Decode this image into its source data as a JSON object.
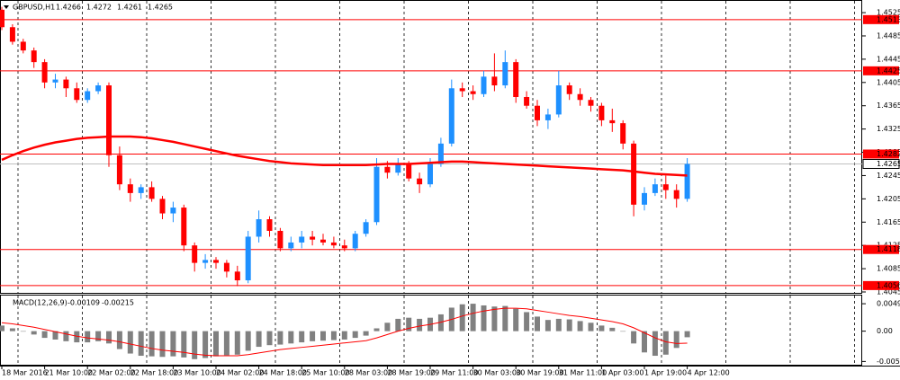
{
  "chart_data": {
    "type": "candlestick",
    "symbol": "GBPUSD,H1",
    "header_values": [
      1.4266,
      1.4272,
      1.4261,
      1.4265
    ],
    "up_color": "#1e90ff",
    "down_color": "#ff0000",
    "ma_color": "#ff0000",
    "grid": true,
    "ylim": [
      1.4045,
      1.4539
    ],
    "yticks": [
      1.4525,
      1.4485,
      1.4445,
      1.4405,
      1.4365,
      1.4325,
      1.4285,
      1.4245,
      1.4205,
      1.4165,
      1.4125,
      1.4085,
      1.4045
    ],
    "levels": [
      1.4513,
      1.4425,
      1.4282,
      1.4118,
      1.4056
    ],
    "last": 1.4265,
    "categories": [
      "18 Mar 2016",
      null,
      null,
      null,
      "21 Mar 10:00",
      null,
      null,
      null,
      "22 Mar 02:00",
      null,
      null,
      null,
      "22 Mar 18:00",
      null,
      null,
      null,
      "23 Mar 10:00",
      null,
      null,
      null,
      "24 Mar 02:00",
      null,
      null,
      null,
      "24 Mar 18:00",
      null,
      null,
      null,
      "25 Mar 10:00",
      null,
      null,
      null,
      "28 Mar 03:00",
      null,
      null,
      null,
      "28 Mar 19:00",
      null,
      null,
      null,
      "29 Mar 11:00",
      null,
      null,
      null,
      "30 Mar 03:00",
      null,
      null,
      null,
      "30 Mar 19:00",
      null,
      null,
      null,
      "31 Mar 11:00",
      null,
      null,
      null,
      "1 Apr 03:00",
      null,
      null,
      null,
      "1 Apr 19:00",
      null,
      null,
      null,
      "4 Apr 12:00"
    ],
    "open": [
      1.453,
      1.45,
      1.4475,
      1.446,
      1.444,
      1.4405,
      1.441,
      1.4395,
      1.4375,
      1.439,
      1.44,
      1.428,
      1.423,
      1.4215,
      1.4225,
      1.4205,
      1.418,
      1.419,
      1.4125,
      1.4095,
      1.41,
      1.4095,
      1.408,
      1.4065,
      1.414,
      1.417,
      1.415,
      1.412,
      1.413,
      1.414,
      1.4135,
      1.413,
      1.4125,
      1.412,
      1.4145,
      1.4165,
      1.426,
      1.425,
      1.4265,
      1.424,
      1.423,
      1.4265,
      1.43,
      1.4395,
      1.439,
      1.4385,
      1.4415,
      1.44,
      1.444,
      1.438,
      1.4365,
      1.434,
      1.435,
      1.44,
      1.4385,
      1.4375,
      1.4365,
      1.434,
      1.4335,
      1.43,
      1.4195,
      1.4215,
      1.423,
      1.422,
      1.4205
    ],
    "high": [
      1.4535,
      1.4505,
      1.448,
      1.4465,
      1.4445,
      1.442,
      1.4415,
      1.4405,
      1.4395,
      1.4405,
      1.4405,
      1.4295,
      1.424,
      1.423,
      1.4235,
      1.421,
      1.42,
      1.4195,
      1.413,
      1.411,
      1.4105,
      1.41,
      1.409,
      1.415,
      1.4185,
      1.4175,
      1.4155,
      1.414,
      1.415,
      1.415,
      1.4145,
      1.414,
      1.4135,
      1.415,
      1.417,
      1.4275,
      1.427,
      1.4275,
      1.427,
      1.425,
      1.4275,
      1.431,
      1.441,
      1.4405,
      1.44,
      1.4425,
      1.4455,
      1.446,
      1.4445,
      1.439,
      1.4375,
      1.436,
      1.4425,
      1.4405,
      1.4395,
      1.438,
      1.437,
      1.436,
      1.434,
      1.4305,
      1.4225,
      1.424,
      1.4245,
      1.423,
      1.4275
    ],
    "low": [
      1.4495,
      1.447,
      1.4455,
      1.443,
      1.4395,
      1.4395,
      1.438,
      1.437,
      1.437,
      1.4385,
      1.426,
      1.422,
      1.42,
      1.4205,
      1.42,
      1.417,
      1.4165,
      1.4115,
      1.408,
      1.4085,
      1.4085,
      1.407,
      1.4055,
      1.406,
      1.413,
      1.414,
      1.4115,
      1.4115,
      1.412,
      1.4125,
      1.4125,
      1.412,
      1.4115,
      1.4115,
      1.414,
      1.416,
      1.424,
      1.4245,
      1.4235,
      1.4215,
      1.4225,
      1.426,
      1.4295,
      1.438,
      1.4375,
      1.438,
      1.439,
      1.4395,
      1.437,
      1.436,
      1.433,
      1.4325,
      1.4345,
      1.4375,
      1.4365,
      1.4355,
      1.433,
      1.432,
      1.429,
      1.4175,
      1.4185,
      1.421,
      1.4205,
      1.419,
      1.42
    ],
    "close": [
      1.45,
      1.4475,
      1.446,
      1.444,
      1.4405,
      1.441,
      1.4395,
      1.4375,
      1.439,
      1.44,
      1.428,
      1.423,
      1.4215,
      1.4225,
      1.4205,
      1.418,
      1.419,
      1.4125,
      1.4095,
      1.41,
      1.4095,
      1.408,
      1.4065,
      1.414,
      1.417,
      1.415,
      1.412,
      1.413,
      1.414,
      1.4135,
      1.413,
      1.4125,
      1.412,
      1.4145,
      1.4165,
      1.426,
      1.425,
      1.4265,
      1.424,
      1.423,
      1.4265,
      1.43,
      1.4395,
      1.439,
      1.4385,
      1.4415,
      1.44,
      1.444,
      1.438,
      1.4365,
      1.434,
      1.435,
      1.44,
      1.4385,
      1.4375,
      1.4365,
      1.434,
      1.4335,
      1.43,
      1.4195,
      1.4215,
      1.423,
      1.422,
      1.4205,
      1.4265
    ],
    "ma": [
      1.4272,
      1.428,
      1.4287,
      1.4293,
      1.4298,
      1.4302,
      1.4305,
      1.4308,
      1.431,
      1.4311,
      1.4312,
      1.4312,
      1.4312,
      1.4311,
      1.4309,
      1.4306,
      1.4303,
      1.4299,
      1.4295,
      1.4291,
      1.4287,
      1.4283,
      1.4279,
      1.4276,
      1.4273,
      1.427,
      1.4268,
      1.4266,
      1.4265,
      1.4264,
      1.4263,
      1.4263,
      1.4263,
      1.4263,
      1.4263,
      1.4264,
      1.4265,
      1.4265,
      1.4265,
      1.4266,
      1.4267,
      1.4268,
      1.4269,
      1.4269,
      1.4268,
      1.4267,
      1.4266,
      1.4265,
      1.4264,
      1.4263,
      1.4262,
      1.4261,
      1.426,
      1.4259,
      1.4258,
      1.4257,
      1.4256,
      1.4255,
      1.4254,
      1.4252,
      1.425,
      1.4248,
      1.4247,
      1.4246,
      1.4245
    ],
    "macd": {
      "title": "MACD(12,26,9)",
      "header_values": [
        -0.00109,
        -0.00215
      ],
      "hist_color": "#808080",
      "signal_color": "#ff0000",
      "ylim": [
        -0.006,
        0.0062
      ],
      "yticks": [
        0.0049,
        {
          "value": 0,
          "label": "0.00"
        },
        -0.00542
      ],
      "values": [
        0.001,
        0.0005,
        0.0,
        -0.0006,
        -0.0012,
        -0.0015,
        -0.0018,
        -0.002,
        -0.002,
        -0.0018,
        -0.0022,
        -0.0032,
        -0.004,
        -0.0044,
        -0.0045,
        -0.0046,
        -0.0045,
        -0.0047,
        -0.005,
        -0.0048,
        -0.0045,
        -0.0043,
        -0.0042,
        -0.0035,
        -0.0028,
        -0.0025,
        -0.0024,
        -0.0022,
        -0.002,
        -0.0018,
        -0.0017,
        -0.0016,
        -0.0015,
        -0.0012,
        -0.0008,
        0.0005,
        0.0015,
        0.0022,
        0.0024,
        0.0022,
        0.0024,
        0.003,
        0.0042,
        0.0048,
        0.0049,
        0.0046,
        0.0044,
        0.0045,
        0.004,
        0.0034,
        0.0026,
        0.002,
        0.0022,
        0.0021,
        0.0018,
        0.0015,
        0.001,
        0.0006,
        0.0,
        -0.0022,
        -0.0038,
        -0.0044,
        -0.0042,
        -0.003,
        -0.00109
      ],
      "signal": [
        0.0015,
        0.0013,
        0.001,
        0.0007,
        0.0003,
        -0.0001,
        -0.0005,
        -0.0009,
        -0.0012,
        -0.0014,
        -0.0016,
        -0.0019,
        -0.0023,
        -0.0027,
        -0.0031,
        -0.0034,
        -0.0036,
        -0.0038,
        -0.0041,
        -0.0043,
        -0.0044,
        -0.0044,
        -0.0044,
        -0.0042,
        -0.0039,
        -0.0036,
        -0.0033,
        -0.0031,
        -0.0029,
        -0.0027,
        -0.0025,
        -0.0023,
        -0.0021,
        -0.0019,
        -0.0017,
        -0.0012,
        -0.0006,
        0.0,
        0.0005,
        0.0009,
        0.0012,
        0.0016,
        0.0021,
        0.0027,
        0.0032,
        0.0036,
        0.0039,
        0.0041,
        0.0041,
        0.004,
        0.0037,
        0.0034,
        0.0031,
        0.0028,
        0.0026,
        0.0023,
        0.002,
        0.0017,
        0.0013,
        0.0006,
        -0.0003,
        -0.0012,
        -0.0019,
        -0.0022,
        -0.00215
      ]
    }
  }
}
